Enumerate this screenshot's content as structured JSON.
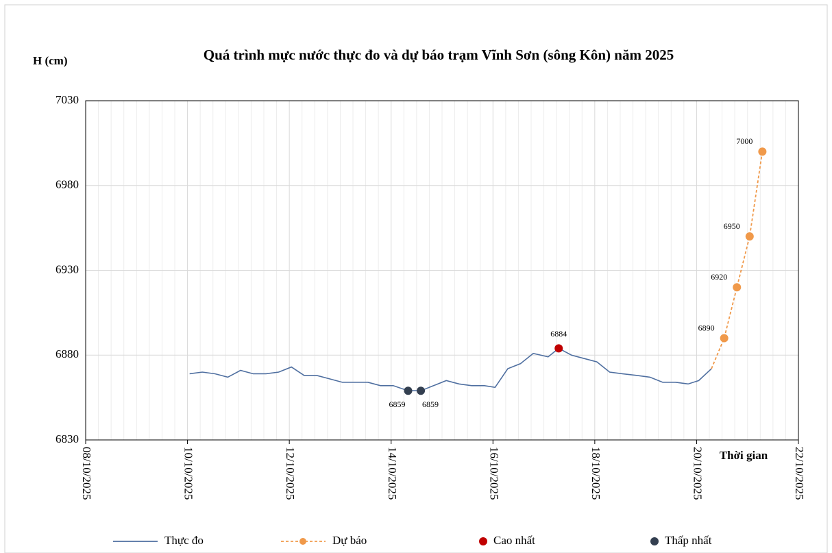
{
  "chart_data": {
    "type": "line",
    "title": "Quá trình mực nước thực đo và dự báo trạm Vĩnh Sơn (sông Kôn) năm 2025",
    "y_label": "H (cm)",
    "x_label": "Thời gian",
    "xlim": [
      "2025-10-08T00:00",
      "2025-10-22T00:00"
    ],
    "xticks": [
      {
        "value": "2025-10-08T00:00",
        "label": "08/10/2025"
      },
      {
        "value": "2025-10-10T00:00",
        "label": "10/10/2025"
      },
      {
        "value": "2025-10-12T00:00",
        "label": "12/10/2025"
      },
      {
        "value": "2025-10-14T00:00",
        "label": "14/10/2025"
      },
      {
        "value": "2025-10-16T00:00",
        "label": "16/10/2025"
      },
      {
        "value": "2025-10-18T00:00",
        "label": "18/10/2025"
      },
      {
        "value": "2025-10-20T00:00",
        "label": "20/10/2025"
      },
      {
        "value": "2025-10-22T00:00",
        "label": "22/10/2025"
      }
    ],
    "ylim": [
      6830,
      7030
    ],
    "yticks": [
      6830,
      6880,
      6930,
      6980,
      7030
    ],
    "grid": true,
    "legend": "bottom",
    "series": [
      {
        "name": "Thực đo",
        "color": "#4f6fa0",
        "style": "solid",
        "x": [
          "2025-10-10T01:00",
          "2025-10-10T07:00",
          "2025-10-10T13:00",
          "2025-10-10T19:00",
          "2025-10-11T01:00",
          "2025-10-11T07:00",
          "2025-10-11T13:00",
          "2025-10-11T19:00",
          "2025-10-12T01:00",
          "2025-10-12T07:00",
          "2025-10-12T13:00",
          "2025-10-12T19:00",
          "2025-10-13T01:00",
          "2025-10-13T07:00",
          "2025-10-13T13:00",
          "2025-10-13T19:00",
          "2025-10-14T01:00",
          "2025-10-14T08:00",
          "2025-10-14T14:00",
          "2025-10-14T20:00",
          "2025-10-15T02:00",
          "2025-10-15T08:00",
          "2025-10-15T14:00",
          "2025-10-15T20:00",
          "2025-10-16T01:00",
          "2025-10-16T07:00",
          "2025-10-16T13:00",
          "2025-10-16T19:00",
          "2025-10-17T02:00",
          "2025-10-17T07:00",
          "2025-10-17T13:00",
          "2025-10-17T19:00",
          "2025-10-18T01:00",
          "2025-10-18T07:00",
          "2025-10-18T13:00",
          "2025-10-18T20:00",
          "2025-10-19T02:00",
          "2025-10-19T08:00",
          "2025-10-19T14:00",
          "2025-10-19T20:00",
          "2025-10-20T01:00",
          "2025-10-20T07:00"
        ],
        "values": [
          6869,
          6870,
          6869,
          6867,
          6871,
          6869,
          6869,
          6870,
          6873,
          6868,
          6868,
          6866,
          6864,
          6864,
          6864,
          6862,
          6862,
          6859,
          6859,
          6862,
          6865,
          6863,
          6862,
          6862,
          6861,
          6872,
          6875,
          6881,
          6879,
          6884,
          6880,
          6878,
          6876,
          6870,
          6869,
          6868,
          6867,
          6864,
          6864,
          6863,
          6865,
          6872
        ]
      },
      {
        "name": "Dự báo",
        "color": "#f0994a",
        "style": "dashed",
        "x": [
          "2025-10-20T07:00",
          "2025-10-20T13:00",
          "2025-10-20T19:00",
          "2025-10-21T01:00",
          "2025-10-21T07:00"
        ],
        "values": [
          6872,
          6890,
          6920,
          6950,
          7000
        ],
        "value_labels": [
          null,
          "6890",
          "6920",
          "6950",
          "7000"
        ]
      },
      {
        "name": "Cao nhất",
        "color": "#c00000",
        "style": "point",
        "x": [
          "2025-10-17T07:00"
        ],
        "values": [
          6884
        ],
        "value_labels": [
          "6884"
        ]
      },
      {
        "name": "Thấp nhất",
        "color": "#333f50",
        "style": "point",
        "x": [
          "2025-10-14T08:00",
          "2025-10-14T14:00"
        ],
        "values": [
          6859,
          6859
        ],
        "value_labels": [
          "6859",
          "6859"
        ]
      }
    ]
  }
}
